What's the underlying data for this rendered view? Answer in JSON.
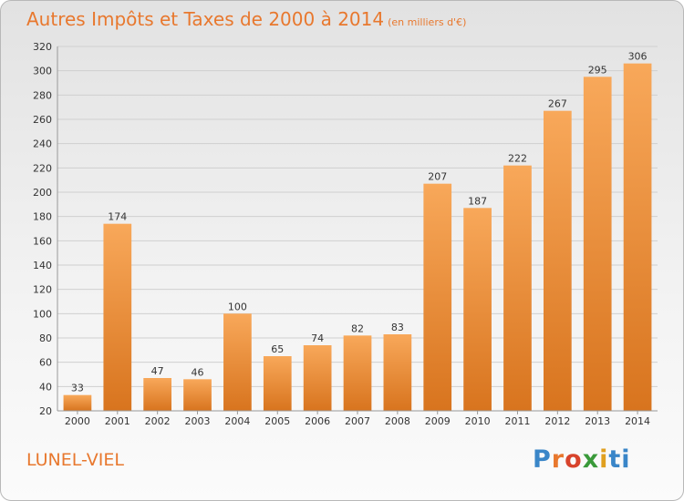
{
  "title": "Autres Impôts et Taxes de 2000 à 2014",
  "subtitle": "(en milliers d'€)",
  "place": "LUNEL-VIEL",
  "brand": {
    "parts": [
      "P",
      "r",
      "o",
      "x",
      "i",
      "ti"
    ]
  },
  "colors": {
    "accent": "#e8782e",
    "bar_top": "#f8a85a",
    "bar_bottom": "#d8741e"
  },
  "chart_data": {
    "type": "bar",
    "title": "Autres Impôts et Taxes de 2000 à 2014",
    "subtitle": "(en milliers d'€)",
    "categories": [
      "2000",
      "2001",
      "2002",
      "2003",
      "2004",
      "2005",
      "2006",
      "2007",
      "2008",
      "2009",
      "2010",
      "2011",
      "2012",
      "2013",
      "2014"
    ],
    "values": [
      33,
      174,
      47,
      46,
      100,
      65,
      74,
      82,
      83,
      207,
      187,
      222,
      267,
      295,
      306
    ],
    "ylim": [
      20,
      320
    ],
    "yticks": [
      20,
      40,
      60,
      80,
      100,
      120,
      140,
      160,
      180,
      200,
      220,
      240,
      260,
      280,
      300,
      320
    ],
    "xlabel": "",
    "ylabel": "",
    "grid": true
  }
}
